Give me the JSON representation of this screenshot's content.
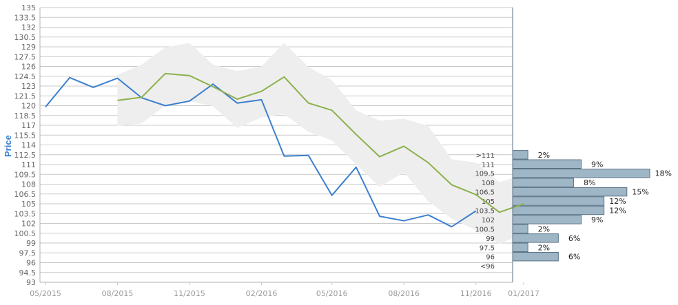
{
  "chart_data": {
    "type": "line",
    "ylabel": "Price",
    "ylim": [
      93,
      135
    ],
    "ytick_labels": [
      "93",
      "94.5",
      "96",
      "97.5",
      "99",
      "100.5",
      "102",
      "103.5",
      "105",
      "106.5",
      "108",
      "109.5",
      "111",
      "112.5",
      "114",
      "115.5",
      "117",
      "118.5",
      "120",
      "121.5",
      "123",
      "124.5",
      "126",
      "127.5",
      "129",
      "130.5",
      "132",
      "133.5",
      "135"
    ],
    "xtick_labels": [
      "05/2015",
      "08/2015",
      "11/2015",
      "02/2016",
      "05/2016",
      "08/2016",
      "11/2016",
      "01/2017"
    ],
    "series": [
      {
        "color": "#3a7fd0",
        "x": [
          "2015-05-01",
          "2015-06-01",
          "2015-07-01",
          "2015-08-01",
          "2015-09-01",
          "2015-10-01",
          "2015-11-01",
          "2015-12-01",
          "2016-01-01",
          "2016-02-01",
          "2016-03-01",
          "2016-04-01",
          "2016-05-01",
          "2016-06-01",
          "2016-07-01",
          "2016-08-01",
          "2016-09-01",
          "2016-10-01",
          "2016-11-01"
        ],
        "values": [
          119.8,
          124.3,
          122.8,
          124.2,
          121.2,
          120.0,
          120.7,
          123.3,
          120.4,
          120.9,
          112.3,
          112.4,
          106.3,
          110.6,
          103.1,
          102.4,
          103.3,
          101.5,
          103.9
        ]
      },
      {
        "color": "#8cb04a",
        "x": [
          "2015-08-01",
          "2015-09-01",
          "2015-10-01",
          "2015-11-01",
          "2015-12-01",
          "2016-01-01",
          "2016-02-01",
          "2016-03-01",
          "2016-04-01",
          "2016-05-01",
          "2016-06-01",
          "2016-07-01",
          "2016-08-01",
          "2016-09-01",
          "2016-10-01",
          "2016-11-01",
          "2016-12-01",
          "2017-01-01"
        ],
        "values": [
          120.8,
          121.3,
          124.9,
          124.6,
          122.9,
          121.0,
          122.2,
          124.4,
          120.4,
          119.3,
          115.6,
          112.2,
          113.8,
          111.3,
          107.9,
          106.4,
          103.7,
          105.0
        ]
      }
    ],
    "band": {
      "color": "#eeeeee",
      "x": [
        "2015-08-01",
        "2015-09-01",
        "2015-10-01",
        "2015-11-01",
        "2015-12-01",
        "2016-01-01",
        "2016-02-01",
        "2016-03-01",
        "2016-04-01",
        "2016-05-01",
        "2016-06-01",
        "2016-07-01",
        "2016-08-01",
        "2016-09-01",
        "2016-10-01",
        "2016-11-01",
        "2016-12-01",
        "2017-01-01"
      ],
      "upper": [
        124.7,
        126.3,
        128.9,
        129.6,
        126.3,
        125.3,
        126.0,
        129.6,
        125.9,
        123.9,
        119.3,
        117.7,
        118.0,
        116.9,
        111.8,
        111.3,
        108.3,
        109.5
      ],
      "lower": [
        116.9,
        117.3,
        120.0,
        120.7,
        119.9,
        116.6,
        118.2,
        118.7,
        116.0,
        114.7,
        111.0,
        107.6,
        109.8,
        105.4,
        102.7,
        101.0,
        98.9,
        100.4
      ]
    },
    "histogram": {
      "color": "#9fb6c6",
      "bins": [
        ">111",
        "111",
        "109.5",
        "108",
        "106.5",
        "105",
        "103.5",
        "102",
        "100.5",
        "99",
        "97.5",
        "96",
        "<96"
      ],
      "values": [
        2,
        9,
        18,
        8,
        15,
        12,
        12,
        9,
        2,
        6,
        2,
        6,
        0
      ],
      "value_labels": [
        "2%",
        "9%",
        "18%",
        "8%",
        "15%",
        "12%",
        "12%",
        "9%",
        "2%",
        "6%",
        "2%",
        "6%",
        ""
      ]
    }
  }
}
